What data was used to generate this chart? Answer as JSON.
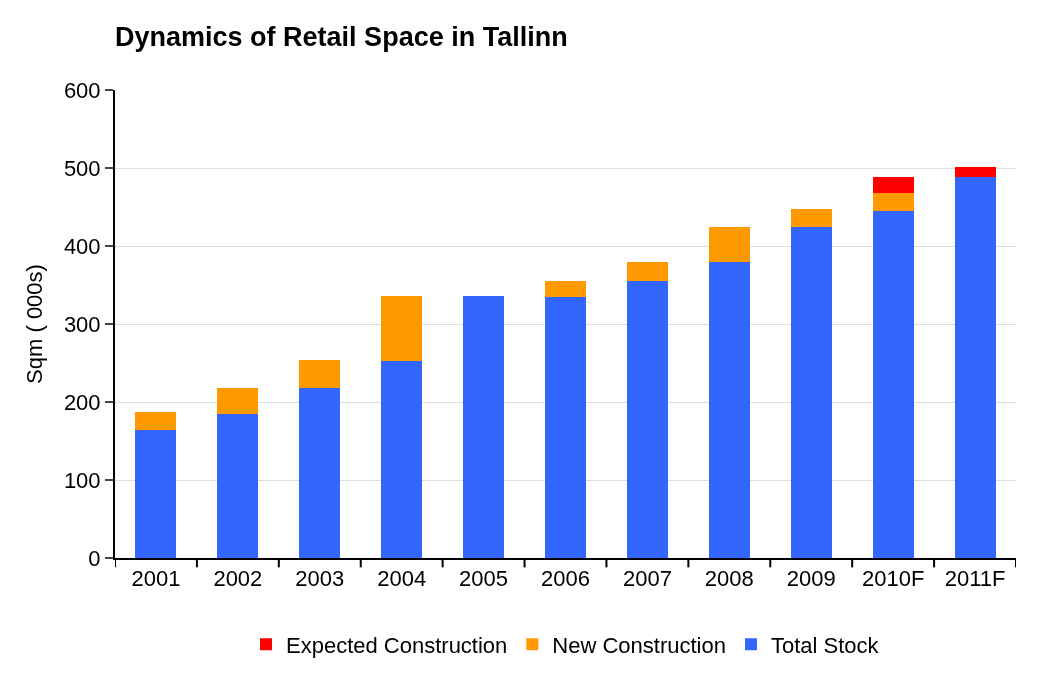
{
  "chart_data": {
    "type": "bar",
    "title": "Dynamics of Retail Space in Tallinn",
    "ylabel": "Sqm ( 000s)",
    "categories": [
      "2001",
      "2002",
      "2003",
      "2004",
      "2005",
      "2006",
      "2007",
      "2008",
      "2009",
      "2010F",
      "2011F"
    ],
    "stacked": true,
    "series": [
      {
        "name": "Total Stock",
        "color": "#3366ff",
        "values": [
          164,
          185,
          218,
          253,
          336,
          335,
          355,
          380,
          424,
          445,
          489
        ]
      },
      {
        "name": "New Construction",
        "color": "#ff9900",
        "values": [
          23,
          33,
          36,
          83,
          null,
          20,
          25,
          44,
          23,
          23,
          null
        ]
      },
      {
        "name": "Expected Construction",
        "color": "#ff0000",
        "values": [
          null,
          null,
          null,
          null,
          null,
          null,
          null,
          null,
          null,
          21,
          12
        ]
      }
    ],
    "ylim": [
      0,
      600
    ],
    "yticks": [
      0,
      100,
      200,
      300,
      400,
      500,
      600
    ],
    "grid": "y",
    "legend": "bottom"
  }
}
